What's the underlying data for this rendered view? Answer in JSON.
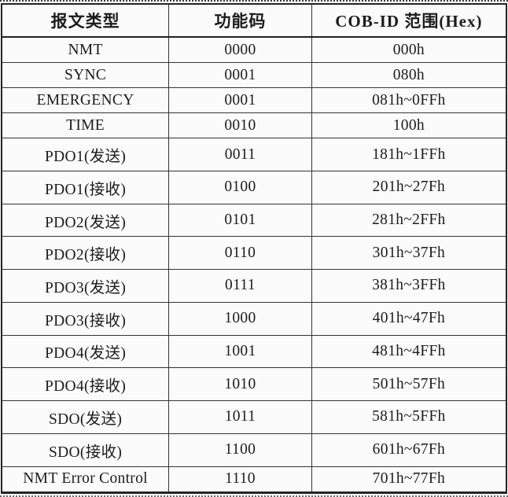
{
  "table": {
    "headers": [
      "报文类型",
      "功能码",
      "COB-ID 范围(Hex)"
    ],
    "rows": [
      [
        "NMT",
        "0000",
        "000h"
      ],
      [
        "SYNC",
        "0001",
        "080h"
      ],
      [
        "EMERGENCY",
        "0001",
        "081h~0FFh"
      ],
      [
        "TIME",
        "0010",
        "100h"
      ],
      [
        "PDO1(发送)",
        "0011",
        "181h~1FFh"
      ],
      [
        "PDO1(接收)",
        "0100",
        "201h~27Fh"
      ],
      [
        "PDO2(发送)",
        "0101",
        "281h~2FFh"
      ],
      [
        "PDO2(接收)",
        "0110",
        "301h~37Fh"
      ],
      [
        "PDO3(发送)",
        "0111",
        "381h~3FFh"
      ],
      [
        "PDO3(接收)",
        "1000",
        "401h~47Fh"
      ],
      [
        "PDO4(发送)",
        "1001",
        "481h~4FFh"
      ],
      [
        "PDO4(接收)",
        "1010",
        "501h~57Fh"
      ],
      [
        "SDO(发送)",
        "1011",
        "581h~5FFh"
      ],
      [
        "SDO(接收)",
        "1100",
        "601h~67Fh"
      ],
      [
        "NMT Error Control",
        "1110",
        "701h~77Fh"
      ]
    ],
    "colors": {
      "background": "#fbfbfb",
      "border": "#242424",
      "text": "#1b1b1b"
    }
  }
}
